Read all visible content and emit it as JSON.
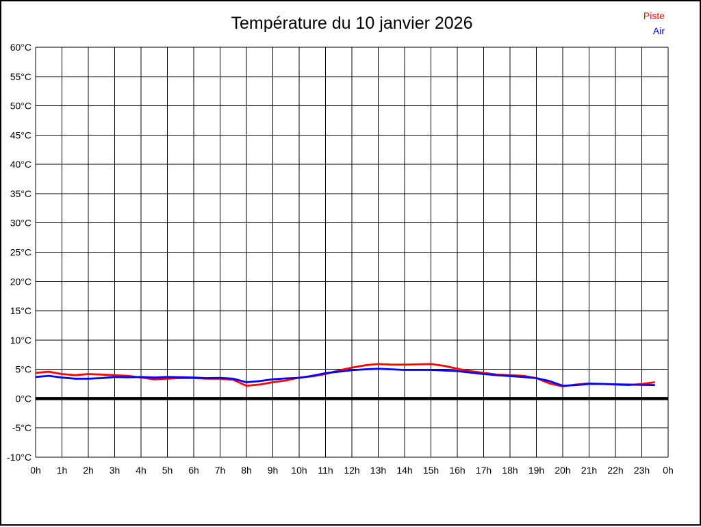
{
  "page": {
    "background": "#ffffff",
    "border_color": "#000000"
  },
  "header": {
    "title": "Température du 10 janvier 2026"
  },
  "legend": {
    "position": "top-right",
    "items": [
      {
        "label": "Piste",
        "color": "#ff0000"
      },
      {
        "label": "Air",
        "color": "#0000ff"
      }
    ]
  },
  "chart_data": {
    "type": "line",
    "title": "Température du 10 janvier 2026",
    "xlabel": "",
    "ylabel": "",
    "x_unit": "hours",
    "xlim": [
      0,
      24
    ],
    "ylim": [
      -10,
      60
    ],
    "y_tick_step": 5,
    "grid": true,
    "zero_line": {
      "value": 0,
      "thick": true,
      "color": "#000000"
    },
    "x_start": 0,
    "x_step": 0.5,
    "x_tick_labels": [
      "0h",
      "1h",
      "2h",
      "3h",
      "4h",
      "5h",
      "6h",
      "7h",
      "8h",
      "9h",
      "10h",
      "11h",
      "12h",
      "13h",
      "14h",
      "15h",
      "16h",
      "17h",
      "18h",
      "19h",
      "20h",
      "21h",
      "22h",
      "23h",
      "0h"
    ],
    "y_tick_labels": [
      "60°C",
      "55°C",
      "50°C",
      "45°C",
      "40°C",
      "35°C",
      "30°C",
      "25°C",
      "20°C",
      "15°C",
      "10°C",
      "5°C",
      "0°C",
      "-5°C",
      "-10°C"
    ],
    "series": [
      {
        "name": "Piste",
        "color": "#ff0000",
        "values": [
          4.4,
          4.6,
          4.2,
          4.0,
          4.2,
          4.1,
          4.0,
          3.9,
          3.6,
          3.3,
          3.4,
          3.5,
          3.5,
          3.4,
          3.4,
          3.2,
          2.2,
          2.4,
          2.8,
          3.1,
          3.6,
          3.8,
          4.2,
          4.8,
          5.3,
          5.7,
          5.9,
          5.8,
          5.8,
          5.85,
          5.9,
          5.6,
          5.1,
          4.7,
          4.4,
          4.1,
          4.0,
          3.9,
          3.5,
          2.6,
          2.1,
          2.4,
          2.6,
          2.5,
          2.4,
          2.3,
          2.5,
          2.8
        ]
      },
      {
        "name": "Air",
        "color": "#0000ff",
        "values": [
          3.7,
          3.9,
          3.6,
          3.4,
          3.4,
          3.5,
          3.7,
          3.65,
          3.7,
          3.6,
          3.7,
          3.65,
          3.6,
          3.5,
          3.55,
          3.4,
          2.8,
          3.0,
          3.3,
          3.45,
          3.55,
          3.9,
          4.35,
          4.6,
          4.85,
          5.0,
          5.1,
          5.0,
          4.9,
          4.9,
          4.9,
          4.8,
          4.7,
          4.45,
          4.2,
          4.0,
          3.85,
          3.7,
          3.5,
          3.0,
          2.2,
          2.3,
          2.5,
          2.5,
          2.45,
          2.4,
          2.35,
          2.3
        ]
      }
    ]
  }
}
